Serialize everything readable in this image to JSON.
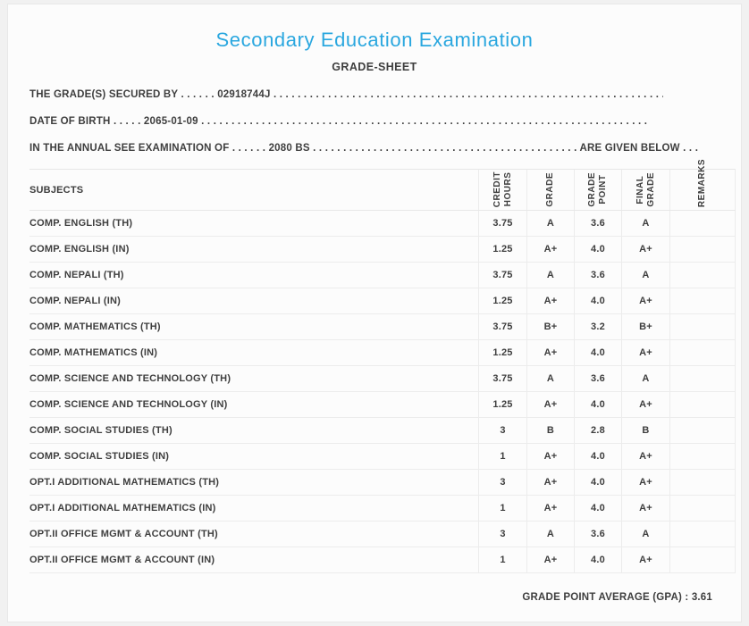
{
  "colors": {
    "accent_blue": "#2AA7DF",
    "text_dark": "#3E3E3E",
    "card_background": "#FCFCFC",
    "page_background": "#F1F1F1",
    "divider": "#ECECEC"
  },
  "header": {
    "title": "Secondary Education Examination",
    "subtitle": "GRADE-SHEET"
  },
  "student": {
    "symbol_number": "02918744J",
    "date_of_birth": "2065-01-09",
    "examination_year": "2080 BS"
  },
  "info_lines": {
    "secured_by": {
      "label": "THE GRADE(S) SECURED BY",
      "dots_before": " . . . . . . ",
      "value": "02918744J",
      "dots_after": " . . . . . . . . . . . . . . . . . . . . . . . . . . . . . . . . . . . . . . . . . . . . . . . . . . . . . . . . . . . . . . . . . . . . . . . . . . . . . . . ."
    },
    "birth": {
      "label": "DATE OF BIRTH",
      "dots_before": " . . . . . ",
      "value": "2065-01-09",
      "dots_after": " . . . . . . . . . . . . . . . . . . . . . . . . . . . . . . . . . . . . . . . . . . . . . . . . . . . . . . . . . . . . . . . . . . . . . . . . . . . . . . . ."
    },
    "examination": {
      "label": "IN THE ANNUAL SEE EXAMINATION OF",
      "dots_before": " . . . . . . ",
      "value": "2080 BS",
      "dots_mid": " . . . . . . . . . . . . . . . . . . . . . . . . . . . . . . . . . . . . . . . . . . . . ",
      "suffix": "ARE GIVEN BELOW",
      "dots_end": " . . ."
    }
  },
  "table": {
    "columns": {
      "subjects": "SUBJECTS",
      "credit_hours": "CREDIT\nHOURS",
      "grade": "GRADE",
      "grade_point": "GRADE\nPOINT",
      "final_grade": "FINAL\nGRADE",
      "remarks": "REMARKS"
    },
    "rows": [
      {
        "subject": "COMP. ENGLISH (TH)",
        "credit_hours": "3.75",
        "grade": "A",
        "grade_point": "3.6",
        "final_grade": "A",
        "remarks": ""
      },
      {
        "subject": "COMP. ENGLISH (IN)",
        "credit_hours": "1.25",
        "grade": "A+",
        "grade_point": "4.0",
        "final_grade": "A+",
        "remarks": ""
      },
      {
        "subject": "COMP. NEPALI (TH)",
        "credit_hours": "3.75",
        "grade": "A",
        "grade_point": "3.6",
        "final_grade": "A",
        "remarks": ""
      },
      {
        "subject": "COMP. NEPALI (IN)",
        "credit_hours": "1.25",
        "grade": "A+",
        "grade_point": "4.0",
        "final_grade": "A+",
        "remarks": ""
      },
      {
        "subject": "COMP. MATHEMATICS (TH)",
        "credit_hours": "3.75",
        "grade": "B+",
        "grade_point": "3.2",
        "final_grade": "B+",
        "remarks": ""
      },
      {
        "subject": "COMP. MATHEMATICS (IN)",
        "credit_hours": "1.25",
        "grade": "A+",
        "grade_point": "4.0",
        "final_grade": "A+",
        "remarks": ""
      },
      {
        "subject": "COMP. SCIENCE AND TECHNOLOGY (TH)",
        "credit_hours": "3.75",
        "grade": "A",
        "grade_point": "3.6",
        "final_grade": "A",
        "remarks": ""
      },
      {
        "subject": "COMP. SCIENCE AND TECHNOLOGY (IN)",
        "credit_hours": "1.25",
        "grade": "A+",
        "grade_point": "4.0",
        "final_grade": "A+",
        "remarks": ""
      },
      {
        "subject": "COMP. SOCIAL STUDIES (TH)",
        "credit_hours": "3",
        "grade": "B",
        "grade_point": "2.8",
        "final_grade": "B",
        "remarks": ""
      },
      {
        "subject": "COMP. SOCIAL STUDIES (IN)",
        "credit_hours": "1",
        "grade": "A+",
        "grade_point": "4.0",
        "final_grade": "A+",
        "remarks": ""
      },
      {
        "subject": "OPT.I ADDITIONAL MATHEMATICS (TH)",
        "credit_hours": "3",
        "grade": "A+",
        "grade_point": "4.0",
        "final_grade": "A+",
        "remarks": ""
      },
      {
        "subject": "OPT.I ADDITIONAL MATHEMATICS (IN)",
        "credit_hours": "1",
        "grade": "A+",
        "grade_point": "4.0",
        "final_grade": "A+",
        "remarks": ""
      },
      {
        "subject": "OPT.II OFFICE MGMT & ACCOUNT (TH)",
        "credit_hours": "3",
        "grade": "A",
        "grade_point": "3.6",
        "final_grade": "A",
        "remarks": ""
      },
      {
        "subject": "OPT.II OFFICE MGMT & ACCOUNT (IN)",
        "credit_hours": "1",
        "grade": "A+",
        "grade_point": "4.0",
        "final_grade": "A+",
        "remarks": ""
      }
    ]
  },
  "footer": {
    "gpa_label": "GRADE POINT AVERAGE (GPA) :",
    "gpa_value": "3.61"
  }
}
